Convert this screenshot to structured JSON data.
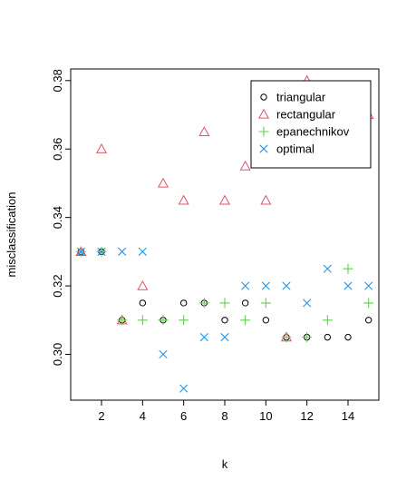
{
  "chart_data": {
    "type": "scatter",
    "xlabel": "k",
    "ylabel": "misclassification",
    "xlim": [
      0.5,
      15.5
    ],
    "ylim": [
      0.2866,
      0.3834
    ],
    "x_ticks": [
      "2",
      "4",
      "6",
      "8",
      "10",
      "12",
      "14"
    ],
    "y_ticks": [
      "0.30",
      "0.32",
      "0.34",
      "0.36",
      "0.38"
    ],
    "grid": false,
    "legend_position": "top-right",
    "series": [
      {
        "name": "triangular",
        "marker": "circle",
        "color": "#000000",
        "x": [
          1,
          2,
          3,
          4,
          5,
          6,
          7,
          8,
          9,
          10,
          11,
          12,
          13,
          14,
          15
        ],
        "y": [
          0.33,
          0.33,
          0.31,
          0.315,
          0.31,
          0.315,
          0.315,
          0.31,
          0.315,
          0.31,
          0.305,
          0.305,
          0.305,
          0.305,
          0.31
        ]
      },
      {
        "name": "rectangular",
        "marker": "triangle",
        "color": "#DF536B",
        "x": [
          1,
          2,
          3,
          4,
          5,
          6,
          7,
          8,
          9,
          10,
          11,
          12,
          13,
          14,
          15
        ],
        "y": [
          0.33,
          0.36,
          0.31,
          0.32,
          0.35,
          0.345,
          0.365,
          0.345,
          0.355,
          0.345,
          0.305,
          0.38,
          0.36,
          0.37,
          0.37
        ]
      },
      {
        "name": "epanechnikov",
        "marker": "plus",
        "color": "#61D04F",
        "x": [
          1,
          2,
          3,
          4,
          5,
          6,
          7,
          8,
          9,
          10,
          11,
          12,
          13,
          14,
          15
        ],
        "y": [
          0.33,
          0.33,
          0.31,
          0.31,
          0.31,
          0.31,
          0.315,
          0.315,
          0.31,
          0.315,
          0.305,
          0.305,
          0.31,
          0.325,
          0.315
        ]
      },
      {
        "name": "optimal",
        "marker": "cross",
        "color": "#2297E6",
        "x": [
          1,
          2,
          3,
          4,
          5,
          6,
          7,
          8,
          9,
          10,
          11,
          12,
          13,
          14,
          15
        ],
        "y": [
          0.33,
          0.33,
          0.33,
          0.33,
          0.3,
          0.29,
          0.305,
          0.305,
          0.32,
          0.32,
          0.32,
          0.315,
          0.325,
          0.32,
          0.32
        ]
      }
    ]
  }
}
